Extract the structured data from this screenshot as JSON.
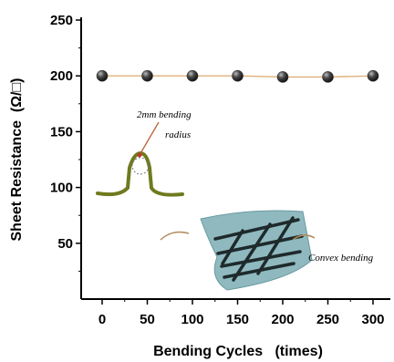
{
  "chart_data": {
    "type": "scatter",
    "xlabel": "Bending Cycles   (times)",
    "ylabel": "Sheet Resistance  (Ω/□)",
    "x_ticks": [
      0,
      50,
      100,
      150,
      200,
      250,
      300
    ],
    "y_ticks": [
      50,
      100,
      150,
      200,
      250
    ],
    "xlim": [
      -20,
      320
    ],
    "ylim": [
      0,
      250
    ],
    "grid": false,
    "legend": "none",
    "series": [
      {
        "x": [
          0,
          50,
          100,
          150,
          200,
          250,
          300
        ],
        "y": [
          200,
          200,
          200,
          200,
          199,
          199,
          200
        ]
      }
    ],
    "annotations": [
      {
        "text": "2mm bending"
      },
      {
        "text": "radius"
      },
      {
        "text": "Convex bending"
      }
    ]
  },
  "colors": {
    "marker": "#3a3a3a",
    "connector": "#e0b07a",
    "bent_film": "#6f7a1e",
    "bend_tip": "#c0392b",
    "sheet_fill": "#8fb9bf",
    "sheet_stroke": "#6b9aa1",
    "nanowire": "#1e2a2c",
    "arrow": "#b08a5a"
  }
}
